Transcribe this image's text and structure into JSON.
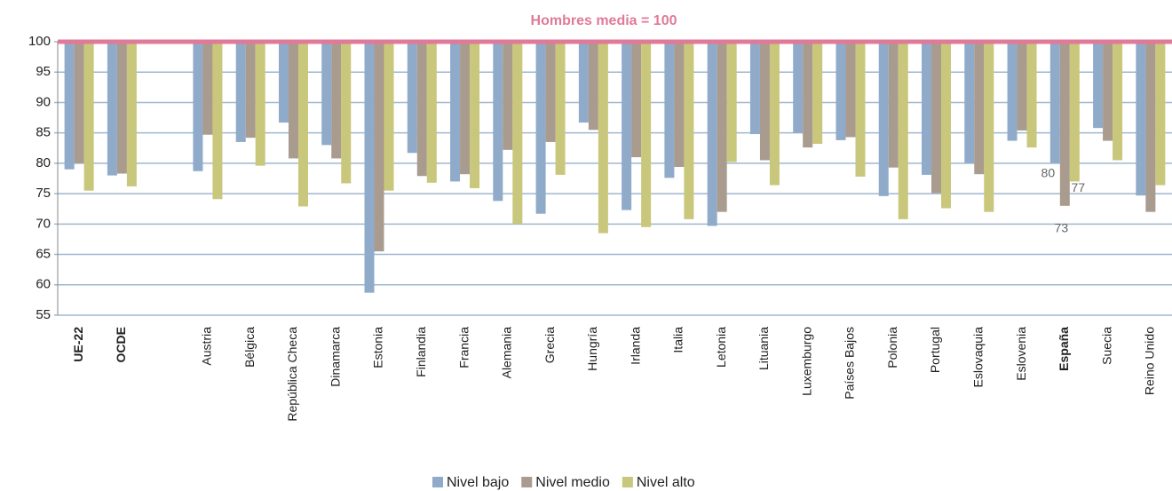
{
  "chart_data": {
    "type": "bar",
    "title": "Hombres media = 100",
    "categories": [
      "UE-22",
      "OCDE",
      null,
      "Austria",
      "Bélgica",
      "República Checa",
      "Dinamarca",
      "Estonia",
      "Finlandia",
      "Francia",
      "Alemania",
      "Grecia",
      "Hungría",
      "Irlanda",
      "Italia",
      "Letonia",
      "Lituania",
      "Luxemburgo",
      "Países Bajos",
      "Polonia",
      "Portugal",
      "Eslovaquia",
      "Eslovenia",
      "España",
      "Suecia",
      "Reino Unido"
    ],
    "series": [
      {
        "name": "Nivel bajo",
        "color": "#8fabc9",
        "values": [
          79,
          78,
          null,
          78.7,
          83.5,
          86.7,
          83,
          58.7,
          81.7,
          77,
          73.8,
          71.7,
          86.7,
          72.3,
          77.6,
          69.7,
          84.8,
          85,
          83.8,
          74.6,
          78.1,
          80,
          83.7,
          80,
          85.8,
          74.7
        ],
        "value_labels": [
          null,
          null,
          null,
          null,
          null,
          null,
          null,
          null,
          null,
          null,
          null,
          null,
          null,
          null,
          null,
          null,
          null,
          null,
          null,
          null,
          null,
          null,
          null,
          "80",
          null,
          null
        ]
      },
      {
        "name": "Nivel medio",
        "color": "#a99b8e",
        "values": [
          80,
          78.3,
          null,
          84.7,
          84.2,
          80.8,
          80.8,
          65.5,
          77.9,
          78.2,
          82.2,
          83.5,
          85.5,
          81,
          79.4,
          72,
          80.5,
          82.6,
          84.3,
          79.3,
          75.1,
          78.2,
          85.4,
          73,
          83.7,
          72
        ],
        "value_labels": [
          null,
          null,
          null,
          null,
          null,
          null,
          null,
          null,
          null,
          null,
          null,
          null,
          null,
          null,
          null,
          null,
          null,
          null,
          null,
          null,
          null,
          null,
          null,
          "73",
          null,
          null
        ]
      },
      {
        "name": "Nivel alto",
        "color": "#c9c77b",
        "values": [
          75.5,
          76.2,
          null,
          74.1,
          79.6,
          72.9,
          76.7,
          75.5,
          76.8,
          75.9,
          70,
          78.1,
          68.5,
          69.5,
          70.8,
          80.2,
          76.4,
          83.2,
          77.8,
          70.8,
          72.6,
          72,
          82.6,
          77,
          80.5,
          76.4
        ],
        "value_labels": [
          null,
          null,
          null,
          null,
          null,
          null,
          null,
          null,
          null,
          null,
          null,
          null,
          null,
          null,
          null,
          null,
          null,
          null,
          null,
          null,
          null,
          null,
          null,
          "77",
          null,
          null
        ]
      }
    ],
    "ylim": [
      55,
      100
    ],
    "yticks": [
      55,
      60,
      65,
      70,
      75,
      80,
      85,
      90,
      95,
      100
    ],
    "grid": true
  }
}
